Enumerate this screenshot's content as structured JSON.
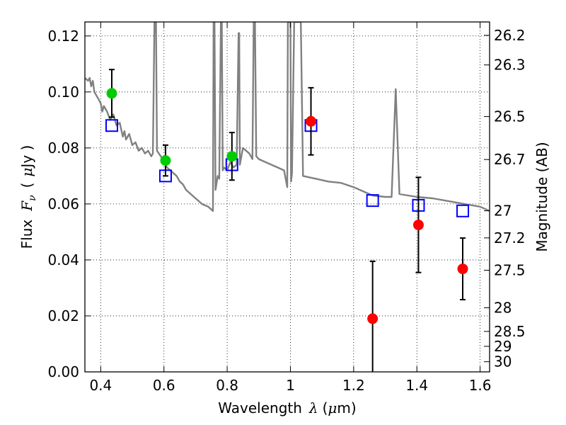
{
  "chart_data": {
    "type": "scatter",
    "xlabel": {
      "main": "Wavelength",
      "symbol": "λ",
      "unit_open": "(",
      "unit_mu": "μ",
      "unit_rest": "m)"
    },
    "ylabel": {
      "main": "Flux",
      "symbol": "F",
      "sub": "ν",
      "unit_open": "(",
      "unit_mu": "μ",
      "unit_rest": "Jy )"
    },
    "ylabel_right": "Magnitude (AB)",
    "xlim": [
      0.35,
      1.63
    ],
    "ylim": [
      0.0,
      0.125
    ],
    "grid": true,
    "x_ticks": [
      {
        "value": 0.4,
        "label": "0.4"
      },
      {
        "value": 0.6,
        "label": "0.6"
      },
      {
        "value": 0.8,
        "label": "0.8"
      },
      {
        "value": 1.0,
        "label": "1"
      },
      {
        "value": 1.2,
        "label": "1.2"
      },
      {
        "value": 1.4,
        "label": "1.4"
      },
      {
        "value": 1.6,
        "label": "1.6"
      }
    ],
    "y_ticks": [
      {
        "value": 0.0,
        "label": "0.00"
      },
      {
        "value": 0.02,
        "label": "0.02"
      },
      {
        "value": 0.04,
        "label": "0.04"
      },
      {
        "value": 0.06,
        "label": "0.06"
      },
      {
        "value": 0.08,
        "label": "0.08"
      },
      {
        "value": 0.1,
        "label": "0.10"
      },
      {
        "value": 0.12,
        "label": "0.12"
      }
    ],
    "right_ticks": [
      {
        "mag": 26.2,
        "label": "26.2"
      },
      {
        "mag": 26.3,
        "label": "26.3"
      },
      {
        "mag": 26.5,
        "label": "26.5"
      },
      {
        "mag": 26.7,
        "label": "26.7"
      },
      {
        "mag": 27.0,
        "label": "27"
      },
      {
        "mag": 27.2,
        "label": "27.2"
      },
      {
        "mag": 27.5,
        "label": "27.5"
      },
      {
        "mag": 28.0,
        "label": "28"
      },
      {
        "mag": 28.5,
        "label": "28.5"
      },
      {
        "mag": 29.0,
        "label": "29"
      },
      {
        "mag": 30.0,
        "label": "30"
      }
    ],
    "series": [
      {
        "kind": "line",
        "color": "#808080",
        "points": [
          [
            0.35,
            0.105
          ],
          [
            0.36,
            0.104
          ],
          [
            0.365,
            0.105
          ],
          [
            0.37,
            0.102
          ],
          [
            0.375,
            0.104
          ],
          [
            0.38,
            0.1
          ],
          [
            0.39,
            0.098
          ],
          [
            0.4,
            0.096
          ],
          [
            0.405,
            0.093
          ],
          [
            0.41,
            0.095
          ],
          [
            0.42,
            0.093
          ],
          [
            0.43,
            0.09
          ],
          [
            0.44,
            0.092
          ],
          [
            0.45,
            0.088
          ],
          [
            0.46,
            0.089
          ],
          [
            0.47,
            0.084
          ],
          [
            0.475,
            0.086
          ],
          [
            0.48,
            0.083
          ],
          [
            0.49,
            0.085
          ],
          [
            0.5,
            0.081
          ],
          [
            0.51,
            0.082
          ],
          [
            0.52,
            0.079
          ],
          [
            0.53,
            0.08
          ],
          [
            0.54,
            0.078
          ],
          [
            0.55,
            0.079
          ],
          [
            0.56,
            0.077
          ],
          [
            0.565,
            0.078
          ],
          [
            0.57,
            0.125
          ],
          [
            0.575,
            0.125
          ],
          [
            0.578,
            0.079
          ],
          [
            0.59,
            0.077
          ],
          [
            0.6,
            0.075
          ],
          [
            0.61,
            0.073
          ],
          [
            0.62,
            0.072
          ],
          [
            0.63,
            0.071
          ],
          [
            0.64,
            0.07
          ],
          [
            0.65,
            0.068
          ],
          [
            0.66,
            0.067
          ],
          [
            0.67,
            0.065
          ],
          [
            0.68,
            0.064
          ],
          [
            0.69,
            0.063
          ],
          [
            0.7,
            0.062
          ],
          [
            0.71,
            0.061
          ],
          [
            0.72,
            0.06
          ],
          [
            0.73,
            0.0595
          ],
          [
            0.74,
            0.059
          ],
          [
            0.75,
            0.058
          ],
          [
            0.755,
            0.0575
          ],
          [
            0.757,
            0.125
          ],
          [
            0.76,
            0.125
          ],
          [
            0.763,
            0.065
          ],
          [
            0.77,
            0.07
          ],
          [
            0.775,
            0.069
          ],
          [
            0.78,
            0.125
          ],
          [
            0.783,
            0.125
          ],
          [
            0.786,
            0.072
          ],
          [
            0.79,
            0.073
          ],
          [
            0.8,
            0.072
          ],
          [
            0.81,
            0.075
          ],
          [
            0.82,
            0.073
          ],
          [
            0.83,
            0.074
          ],
          [
            0.836,
            0.121
          ],
          [
            0.838,
            0.121
          ],
          [
            0.84,
            0.074
          ],
          [
            0.85,
            0.08
          ],
          [
            0.86,
            0.079
          ],
          [
            0.87,
            0.078
          ],
          [
            0.88,
            0.076
          ],
          [
            0.884,
            0.125
          ],
          [
            0.888,
            0.125
          ],
          [
            0.892,
            0.077
          ],
          [
            0.9,
            0.076
          ],
          [
            0.92,
            0.075
          ],
          [
            0.94,
            0.074
          ],
          [
            0.96,
            0.073
          ],
          [
            0.98,
            0.072
          ],
          [
            0.99,
            0.066
          ],
          [
            0.992,
            0.125
          ],
          [
            1.0,
            0.125
          ],
          [
            1.002,
            0.068
          ],
          [
            1.005,
            0.071
          ],
          [
            1.012,
            0.125
          ],
          [
            1.033,
            0.125
          ],
          [
            1.04,
            0.07
          ],
          [
            1.08,
            0.069
          ],
          [
            1.12,
            0.068
          ],
          [
            1.16,
            0.0675
          ],
          [
            1.2,
            0.066
          ],
          [
            1.26,
            0.063
          ],
          [
            1.3,
            0.0625
          ],
          [
            1.32,
            0.0625
          ],
          [
            1.333,
            0.101
          ],
          [
            1.345,
            0.0635
          ],
          [
            1.4,
            0.0625
          ],
          [
            1.45,
            0.062
          ],
          [
            1.5,
            0.061
          ],
          [
            1.55,
            0.06
          ],
          [
            1.6,
            0.059
          ],
          [
            1.63,
            0.0575
          ]
        ]
      },
      {
        "kind": "open-squares",
        "color": "#0000ff",
        "points": [
          [
            0.435,
            0.088
          ],
          [
            0.605,
            0.07
          ],
          [
            0.815,
            0.074
          ],
          [
            1.065,
            0.088
          ],
          [
            1.26,
            0.0612
          ],
          [
            1.405,
            0.0595
          ],
          [
            1.545,
            0.0575
          ]
        ]
      },
      {
        "kind": "points-with-error",
        "color": "#00cc00",
        "points": [
          {
            "x": 0.435,
            "y": 0.0995,
            "err": 0.0085
          },
          {
            "x": 0.605,
            "y": 0.0755,
            "err": 0.0055
          },
          {
            "x": 0.815,
            "y": 0.077,
            "err": 0.0085
          }
        ]
      },
      {
        "kind": "points-with-error",
        "color": "#ff0000",
        "points": [
          {
            "x": 1.065,
            "y": 0.0895,
            "err": 0.012
          },
          {
            "x": 1.26,
            "y": 0.019,
            "err": 0.0205
          },
          {
            "x": 1.405,
            "y": 0.0525,
            "err": 0.017
          },
          {
            "x": 1.545,
            "y": 0.0368,
            "err": 0.011
          }
        ]
      }
    ]
  }
}
